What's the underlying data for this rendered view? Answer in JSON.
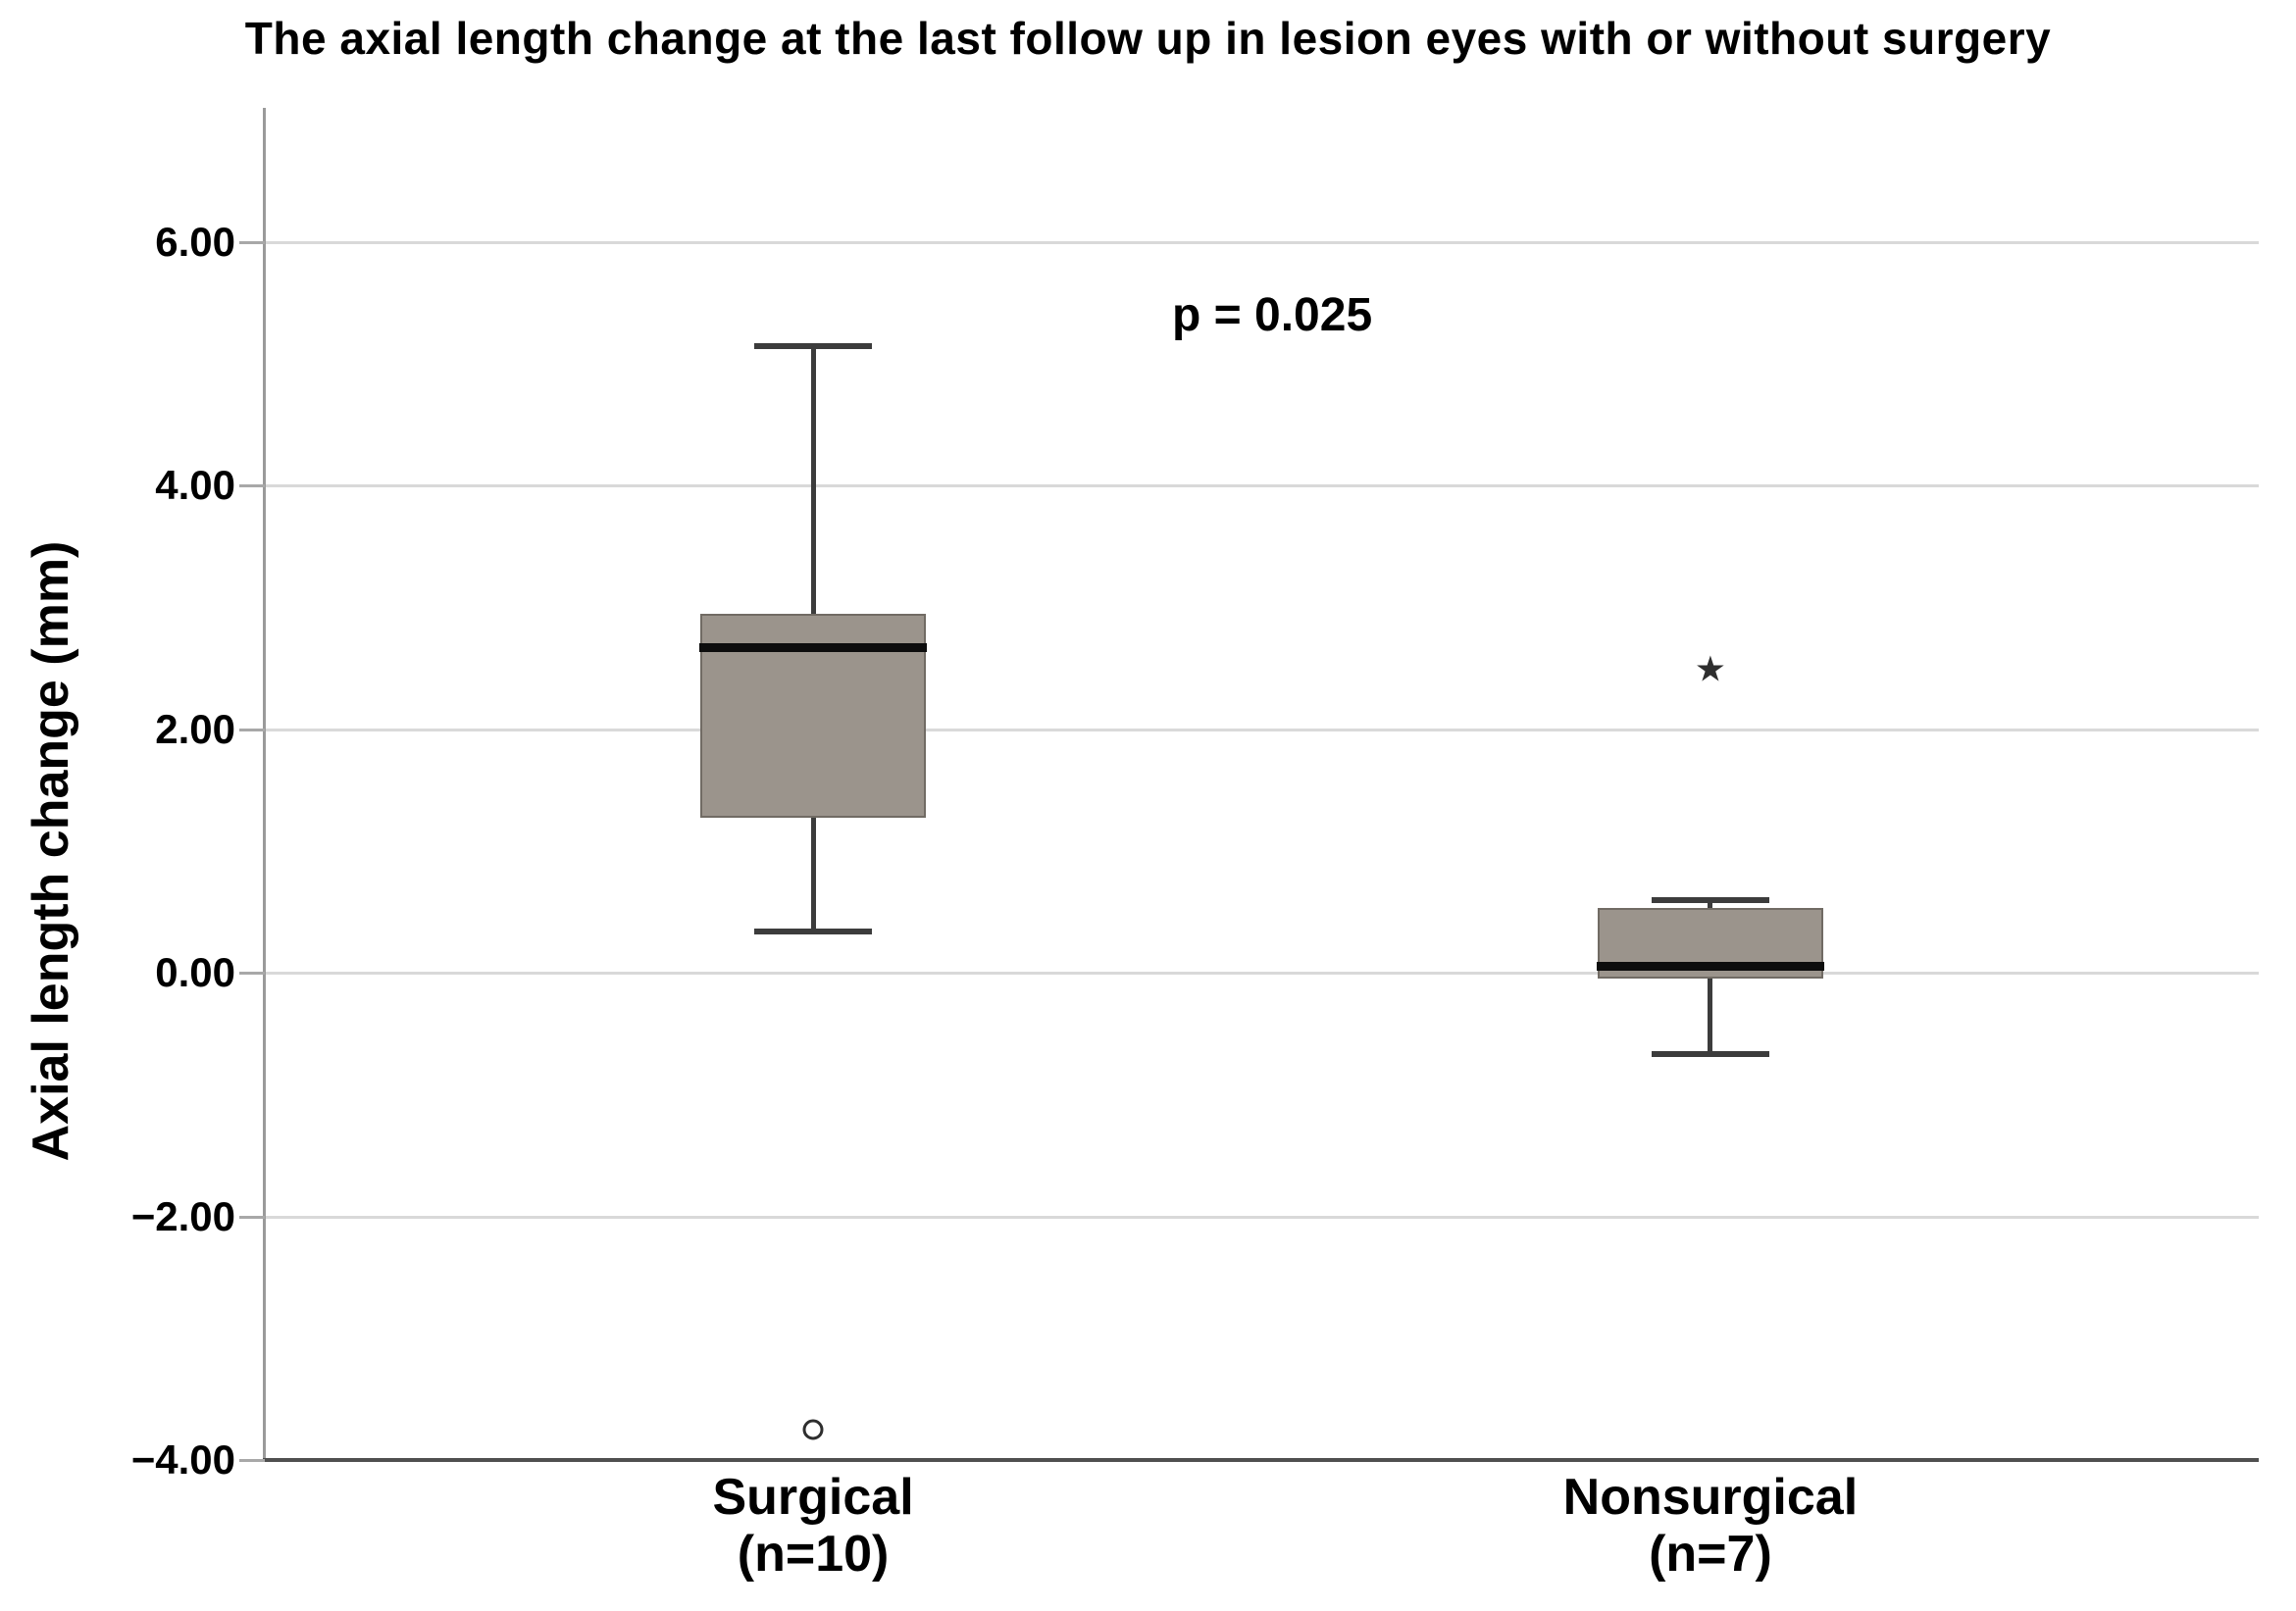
{
  "title": "The axial length change at the last follow up in lesion eyes with or without surgery",
  "annotation": {
    "text": "p = 0.025"
  },
  "y_axis": {
    "label": "Axial length change (mm)",
    "ticks": [
      "6.00",
      "4.00",
      "2.00",
      "0.00",
      "−2.00",
      "−4.00"
    ],
    "tick_values": [
      6,
      4,
      2,
      0,
      -2,
      -4
    ]
  },
  "chart_data": {
    "type": "boxplot",
    "title": "The axial length change at the last follow up in lesion eyes with or without surgery",
    "xlabel": "",
    "ylabel": "Axial length change (mm)",
    "ylim": [
      -4.0,
      7.1
    ],
    "grid": true,
    "gridline_values": [
      6,
      4,
      2,
      0,
      -2
    ],
    "annotation_text": "p = 0.025",
    "categories": [
      "Surgical (n=10)",
      "Nonsurgical (n=7)"
    ],
    "series": [
      {
        "name": "Surgical",
        "n": 10,
        "label_lines": [
          "Surgical",
          "(n=10)"
        ],
        "whisker_low": 0.34,
        "q1": 1.27,
        "median": 2.67,
        "q3": 2.95,
        "whisker_high": 5.15,
        "outliers": [
          {
            "value": -3.75,
            "marker": "circle"
          }
        ]
      },
      {
        "name": "Nonsurgical",
        "n": 7,
        "label_lines": [
          "Nonsurgical",
          "(n=7)"
        ],
        "whisker_low": -0.67,
        "q1": -0.05,
        "median": 0.05,
        "q3": 0.53,
        "whisker_high": 0.6,
        "outliers": [
          {
            "value": 2.48,
            "marker": "star"
          }
        ]
      }
    ],
    "colors": {
      "box_fill": "#9b948c",
      "box_border": "#716b64",
      "median": "#0d0d0d",
      "whisker": "#3c3c3c",
      "gridline": "#d9d9d9",
      "y_axis_line": "#9a9a9a",
      "x_axis_line": "#4f4f4f",
      "text": "#000000"
    },
    "outlier_symbols": {
      "circle": "○",
      "star": "★"
    }
  }
}
